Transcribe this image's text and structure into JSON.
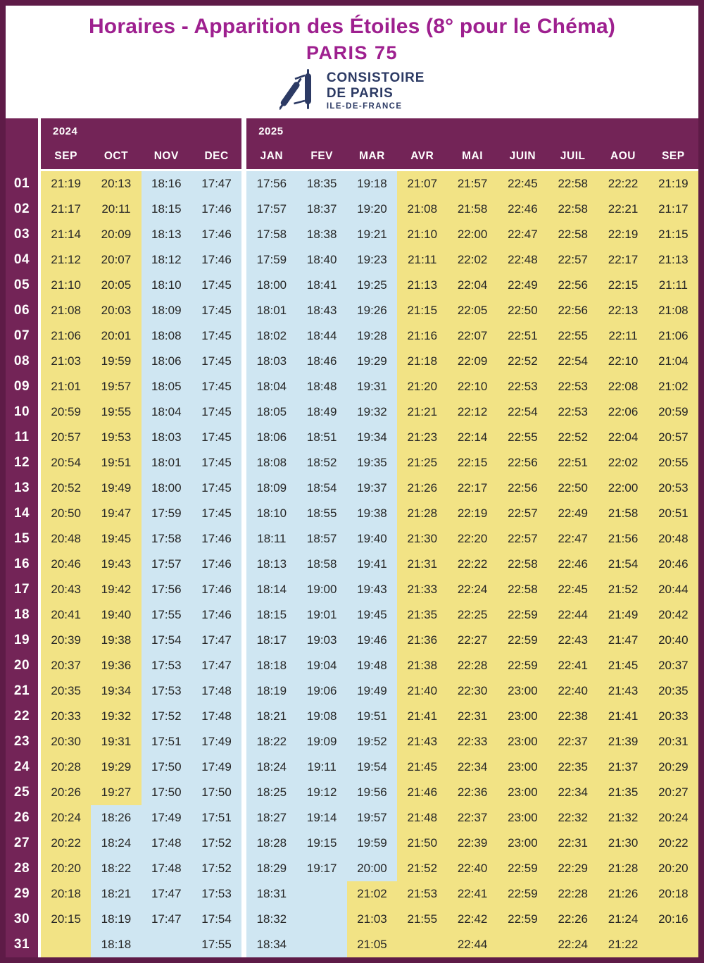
{
  "masthead": {
    "title": "Horaires - Apparition des Étoiles (8° pour le Chéma)",
    "subtitle": "PARIS 75",
    "logo": {
      "icon": "torah-scroll-icon",
      "line1": "CONSISTOIRE",
      "line2": "DE PARIS",
      "line3": "ILE-DE-FRANCE"
    }
  },
  "colors": {
    "frame": "#5e1b47",
    "header": "#732457",
    "summer_bg": "#f2e385",
    "winter_bg": "#cfe6f2",
    "title_text": "#9e208f",
    "logo_navy": "#2c3a64",
    "time_text": "#262626",
    "day_text": "#ffffff"
  },
  "table": {
    "year_groups": [
      {
        "year": "2024",
        "months": [
          "SEP",
          "OCT",
          "NOV",
          "DEC"
        ]
      },
      {
        "year": "2025",
        "months": [
          "JAN",
          "FEV",
          "MAR",
          "AVR",
          "MAI",
          "JUIN",
          "JUIL",
          "AOU",
          "SEP"
        ]
      }
    ],
    "columns": [
      {
        "year": "2024",
        "month": "SEP",
        "season": "summer"
      },
      {
        "year": "2024",
        "month": "OCT",
        "season": "summer",
        "switch_day": 26,
        "switch_to": "winter"
      },
      {
        "year": "2024",
        "month": "NOV",
        "season": "winter"
      },
      {
        "year": "2024",
        "month": "DEC",
        "season": "winter"
      },
      {
        "year": "2025",
        "month": "JAN",
        "season": "winter"
      },
      {
        "year": "2025",
        "month": "FEV",
        "season": "winter"
      },
      {
        "year": "2025",
        "month": "MAR",
        "season": "winter",
        "switch_day": 29,
        "switch_to": "summer"
      },
      {
        "year": "2025",
        "month": "AVR",
        "season": "summer"
      },
      {
        "year": "2025",
        "month": "MAI",
        "season": "summer"
      },
      {
        "year": "2025",
        "month": "JUIN",
        "season": "summer"
      },
      {
        "year": "2025",
        "month": "JUIL",
        "season": "summer"
      },
      {
        "year": "2025",
        "month": "AOU",
        "season": "summer"
      },
      {
        "year": "2025",
        "month": "SEP",
        "season": "summer"
      }
    ],
    "rows": [
      {
        "day": "01",
        "times": [
          "21:19",
          "20:13",
          "18:16",
          "17:47",
          "17:56",
          "18:35",
          "19:18",
          "21:07",
          "21:57",
          "22:45",
          "22:58",
          "22:22",
          "21:19"
        ]
      },
      {
        "day": "02",
        "times": [
          "21:17",
          "20:11",
          "18:15",
          "17:46",
          "17:57",
          "18:37",
          "19:20",
          "21:08",
          "21:58",
          "22:46",
          "22:58",
          "22:21",
          "21:17"
        ]
      },
      {
        "day": "03",
        "times": [
          "21:14",
          "20:09",
          "18:13",
          "17:46",
          "17:58",
          "18:38",
          "19:21",
          "21:10",
          "22:00",
          "22:47",
          "22:58",
          "22:19",
          "21:15"
        ]
      },
      {
        "day": "04",
        "times": [
          "21:12",
          "20:07",
          "18:12",
          "17:46",
          "17:59",
          "18:40",
          "19:23",
          "21:11",
          "22:02",
          "22:48",
          "22:57",
          "22:17",
          "21:13"
        ]
      },
      {
        "day": "05",
        "times": [
          "21:10",
          "20:05",
          "18:10",
          "17:45",
          "18:00",
          "18:41",
          "19:25",
          "21:13",
          "22:04",
          "22:49",
          "22:56",
          "22:15",
          "21:11"
        ]
      },
      {
        "day": "06",
        "times": [
          "21:08",
          "20:03",
          "18:09",
          "17:45",
          "18:01",
          "18:43",
          "19:26",
          "21:15",
          "22:05",
          "22:50",
          "22:56",
          "22:13",
          "21:08"
        ]
      },
      {
        "day": "07",
        "times": [
          "21:06",
          "20:01",
          "18:08",
          "17:45",
          "18:02",
          "18:44",
          "19:28",
          "21:16",
          "22:07",
          "22:51",
          "22:55",
          "22:11",
          "21:06"
        ]
      },
      {
        "day": "08",
        "times": [
          "21:03",
          "19:59",
          "18:06",
          "17:45",
          "18:03",
          "18:46",
          "19:29",
          "21:18",
          "22:09",
          "22:52",
          "22:54",
          "22:10",
          "21:04"
        ]
      },
      {
        "day": "09",
        "times": [
          "21:01",
          "19:57",
          "18:05",
          "17:45",
          "18:04",
          "18:48",
          "19:31",
          "21:20",
          "22:10",
          "22:53",
          "22:53",
          "22:08",
          "21:02"
        ]
      },
      {
        "day": "10",
        "times": [
          "20:59",
          "19:55",
          "18:04",
          "17:45",
          "18:05",
          "18:49",
          "19:32",
          "21:21",
          "22:12",
          "22:54",
          "22:53",
          "22:06",
          "20:59"
        ]
      },
      {
        "day": "11",
        "times": [
          "20:57",
          "19:53",
          "18:03",
          "17:45",
          "18:06",
          "18:51",
          "19:34",
          "21:23",
          "22:14",
          "22:55",
          "22:52",
          "22:04",
          "20:57"
        ]
      },
      {
        "day": "12",
        "times": [
          "20:54",
          "19:51",
          "18:01",
          "17:45",
          "18:08",
          "18:52",
          "19:35",
          "21:25",
          "22:15",
          "22:56",
          "22:51",
          "22:02",
          "20:55"
        ]
      },
      {
        "day": "13",
        "times": [
          "20:52",
          "19:49",
          "18:00",
          "17:45",
          "18:09",
          "18:54",
          "19:37",
          "21:26",
          "22:17",
          "22:56",
          "22:50",
          "22:00",
          "20:53"
        ]
      },
      {
        "day": "14",
        "times": [
          "20:50",
          "19:47",
          "17:59",
          "17:45",
          "18:10",
          "18:55",
          "19:38",
          "21:28",
          "22:19",
          "22:57",
          "22:49",
          "21:58",
          "20:51"
        ]
      },
      {
        "day": "15",
        "times": [
          "20:48",
          "19:45",
          "17:58",
          "17:46",
          "18:11",
          "18:57",
          "19:40",
          "21:30",
          "22:20",
          "22:57",
          "22:47",
          "21:56",
          "20:48"
        ]
      },
      {
        "day": "16",
        "times": [
          "20:46",
          "19:43",
          "17:57",
          "17:46",
          "18:13",
          "18:58",
          "19:41",
          "21:31",
          "22:22",
          "22:58",
          "22:46",
          "21:54",
          "20:46"
        ]
      },
      {
        "day": "17",
        "times": [
          "20:43",
          "19:42",
          "17:56",
          "17:46",
          "18:14",
          "19:00",
          "19:43",
          "21:33",
          "22:24",
          "22:58",
          "22:45",
          "21:52",
          "20:44"
        ]
      },
      {
        "day": "18",
        "times": [
          "20:41",
          "19:40",
          "17:55",
          "17:46",
          "18:15",
          "19:01",
          "19:45",
          "21:35",
          "22:25",
          "22:59",
          "22:44",
          "21:49",
          "20:42"
        ]
      },
      {
        "day": "19",
        "times": [
          "20:39",
          "19:38",
          "17:54",
          "17:47",
          "18:17",
          "19:03",
          "19:46",
          "21:36",
          "22:27",
          "22:59",
          "22:43",
          "21:47",
          "20:40"
        ]
      },
      {
        "day": "20",
        "times": [
          "20:37",
          "19:36",
          "17:53",
          "17:47",
          "18:18",
          "19:04",
          "19:48",
          "21:38",
          "22:28",
          "22:59",
          "22:41",
          "21:45",
          "20:37"
        ]
      },
      {
        "day": "21",
        "times": [
          "20:35",
          "19:34",
          "17:53",
          "17:48",
          "18:19",
          "19:06",
          "19:49",
          "21:40",
          "22:30",
          "23:00",
          "22:40",
          "21:43",
          "20:35"
        ]
      },
      {
        "day": "22",
        "times": [
          "20:33",
          "19:32",
          "17:52",
          "17:48",
          "18:21",
          "19:08",
          "19:51",
          "21:41",
          "22:31",
          "23:00",
          "22:38",
          "21:41",
          "20:33"
        ]
      },
      {
        "day": "23",
        "times": [
          "20:30",
          "19:31",
          "17:51",
          "17:49",
          "18:22",
          "19:09",
          "19:52",
          "21:43",
          "22:33",
          "23:00",
          "22:37",
          "21:39",
          "20:31"
        ]
      },
      {
        "day": "24",
        "times": [
          "20:28",
          "19:29",
          "17:50",
          "17:49",
          "18:24",
          "19:11",
          "19:54",
          "21:45",
          "22:34",
          "23:00",
          "22:35",
          "21:37",
          "20:29"
        ]
      },
      {
        "day": "25",
        "times": [
          "20:26",
          "19:27",
          "17:50",
          "17:50",
          "18:25",
          "19:12",
          "19:56",
          "21:46",
          "22:36",
          "23:00",
          "22:34",
          "21:35",
          "20:27"
        ]
      },
      {
        "day": "26",
        "times": [
          "20:24",
          "18:26",
          "17:49",
          "17:51",
          "18:27",
          "19:14",
          "19:57",
          "21:48",
          "22:37",
          "23:00",
          "22:32",
          "21:32",
          "20:24"
        ]
      },
      {
        "day": "27",
        "times": [
          "20:22",
          "18:24",
          "17:48",
          "17:52",
          "18:28",
          "19:15",
          "19:59",
          "21:50",
          "22:39",
          "23:00",
          "22:31",
          "21:30",
          "20:22"
        ]
      },
      {
        "day": "28",
        "times": [
          "20:20",
          "18:22",
          "17:48",
          "17:52",
          "18:29",
          "19:17",
          "20:00",
          "21:52",
          "22:40",
          "22:59",
          "22:29",
          "21:28",
          "20:20"
        ]
      },
      {
        "day": "29",
        "times": [
          "20:18",
          "18:21",
          "17:47",
          "17:53",
          "18:31",
          "",
          "21:02",
          "21:53",
          "22:41",
          "22:59",
          "22:28",
          "21:26",
          "20:18"
        ]
      },
      {
        "day": "30",
        "times": [
          "20:15",
          "18:19",
          "17:47",
          "17:54",
          "18:32",
          "",
          "21:03",
          "21:55",
          "22:42",
          "22:59",
          "22:26",
          "21:24",
          "20:16"
        ]
      },
      {
        "day": "31",
        "times": [
          "",
          "18:18",
          "",
          "17:55",
          "18:34",
          "",
          "21:05",
          "",
          "22:44",
          "",
          "22:24",
          "21:22",
          ""
        ]
      }
    ]
  }
}
